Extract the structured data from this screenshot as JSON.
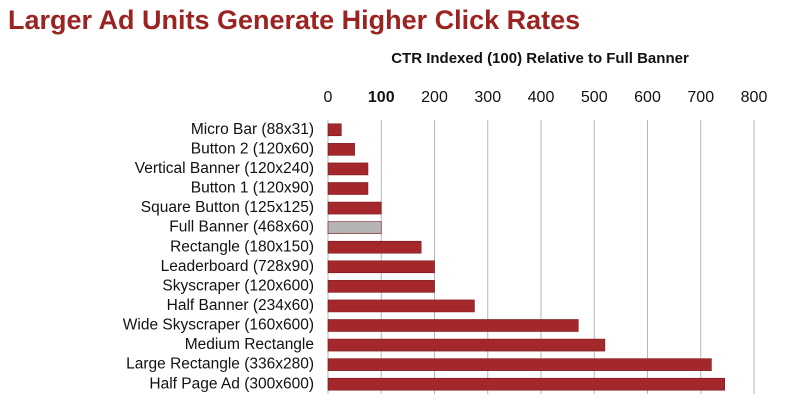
{
  "chart_data": {
    "type": "hbar",
    "title": "Larger Ad Units Generate Higher Click Rates",
    "x_label": "CTR Indexed (100) Relative to Full Banner",
    "categories": [
      "Micro Bar (88x31)",
      "Button 2 (120x60)",
      "Vertical Banner (120x240)",
      "Button 1 (120x90)",
      "Square Button (125x125)",
      "Full Banner (468x60)",
      "Rectangle (180x150)",
      "Leaderboard (728x90)",
      "Skyscraper (120x600)",
      "Half Banner (234x60)",
      "Wide Skyscraper (160x600)",
      "Medium Rectangle",
      "Large Rectangle (336x280)",
      "Half Page Ad (300x600)"
    ],
    "values": [
      25,
      50,
      75,
      75,
      100,
      100,
      175,
      200,
      200,
      275,
      470,
      520,
      720,
      745
    ],
    "colors": [
      "#a3272b",
      "#a3272b",
      "#a3272b",
      "#a3272b",
      "#a3272b",
      "#b4b4b4",
      "#a3272b",
      "#a3272b",
      "#a3272b",
      "#a3272b",
      "#a3272b",
      "#a3272b",
      "#a3272b",
      "#a3272b"
    ],
    "xlim": [
      0,
      800
    ],
    "xticks": [
      0,
      100,
      200,
      300,
      400,
      500,
      600,
      700,
      800
    ],
    "grid": true
  }
}
